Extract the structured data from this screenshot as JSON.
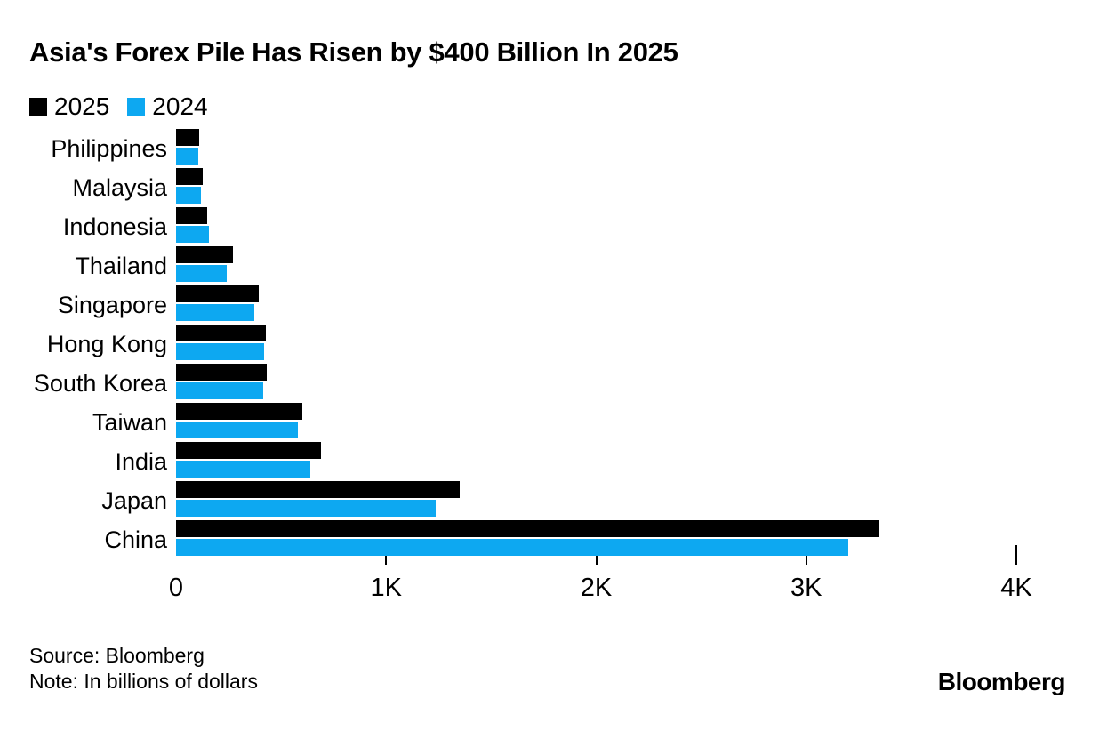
{
  "title": "Asia's Forex Pile Has Risen by $400 Billion In 2025",
  "colors": {
    "series_2025": "#000000",
    "series_2024": "#0da8f1",
    "text": "#000000",
    "background": "#ffffff"
  },
  "chart_data": {
    "type": "bar",
    "orientation": "horizontal",
    "title": "Asia's Forex Pile Has Risen by $400 Billion In 2025",
    "categories": [
      "Philippines",
      "Malaysia",
      "Indonesia",
      "Thailand",
      "Singapore",
      "Hong Kong",
      "South Korea",
      "Taiwan",
      "India",
      "Japan",
      "China"
    ],
    "series": [
      {
        "name": "2025",
        "color": "#000000",
        "values": [
          110,
          127,
          150,
          270,
          394,
          427,
          430,
          600,
          688,
          1350,
          3350
        ]
      },
      {
        "name": "2024",
        "color": "#0da8f1",
        "values": [
          104,
          117,
          157,
          240,
          374,
          421,
          415,
          578,
          640,
          1235,
          3200
        ]
      }
    ],
    "xlim": [
      0,
      4000
    ],
    "xticks": [
      {
        "value": 0,
        "label": "0"
      },
      {
        "value": 1000,
        "label": "1K"
      },
      {
        "value": 2000,
        "label": "2K"
      },
      {
        "value": 3000,
        "label": "3K"
      },
      {
        "value": 4000,
        "label": "4K"
      }
    ],
    "legend_position": "top-left",
    "grid": false,
    "units": "billions of dollars"
  },
  "footer": {
    "source": "Source: Bloomberg",
    "note": "Note: In billions of dollars",
    "brand": "Bloomberg"
  }
}
